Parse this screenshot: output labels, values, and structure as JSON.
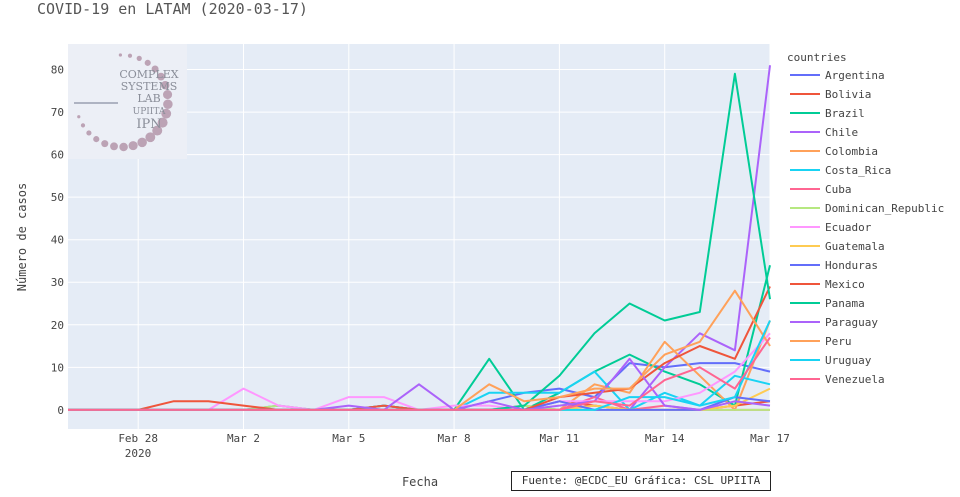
{
  "colors": {
    "plot_bg": "#E5ECF6",
    "grid": "#FFFFFF",
    "text": "#444444",
    "title": "#555555"
  },
  "source_note": "Fuente: @ECDC_EU Gráfica: CSL UPIITA",
  "logo": {
    "lines": [
      "COMPLEX",
      "SYSTEMS",
      "LAB",
      "UPIITA",
      "IPN"
    ]
  },
  "chart_data": {
    "type": "line",
    "title": "COVID-19 en LATAM (2020-03-17)",
    "xlabel": "Fecha",
    "ylabel": "Número de casos",
    "x": [
      "2020-02-26",
      "2020-02-27",
      "2020-02-28",
      "2020-02-29",
      "2020-03-01",
      "2020-03-02",
      "2020-03-03",
      "2020-03-04",
      "2020-03-05",
      "2020-03-06",
      "2020-03-07",
      "2020-03-08",
      "2020-03-09",
      "2020-03-10",
      "2020-03-11",
      "2020-03-12",
      "2020-03-13",
      "2020-03-14",
      "2020-03-15",
      "2020-03-16",
      "2020-03-17"
    ],
    "x_range": [
      "2020-02-26",
      "2020-03-17"
    ],
    "x_ticks": [
      "Feb 28",
      "Mar 2",
      "Mar 5",
      "Mar 8",
      "Mar 11",
      "Mar 14",
      "Mar 17"
    ],
    "x_tick_dates": [
      "2020-02-28",
      "2020-03-02",
      "2020-03-05",
      "2020-03-08",
      "2020-03-11",
      "2020-03-14",
      "2020-03-17"
    ],
    "x_tick_sublabel": "2020",
    "ylim": [
      -4.5,
      86
    ],
    "y_ticks": [
      0,
      10,
      20,
      30,
      40,
      50,
      60,
      70,
      80
    ],
    "grid": true,
    "legend_title": "countries",
    "legend_position": "right",
    "series": [
      {
        "name": "Argentina",
        "color": "#636EFA",
        "values": [
          0,
          0,
          0,
          0,
          0,
          0,
          1,
          0,
          0,
          1,
          0,
          0,
          2,
          4,
          5,
          3,
          11,
          10,
          11,
          11,
          9
        ]
      },
      {
        "name": "Bolivia",
        "color": "#EF553B",
        "values": [
          0,
          0,
          0,
          0,
          0,
          0,
          0,
          0,
          0,
          0,
          0,
          0,
          0,
          0,
          2,
          1,
          0,
          0,
          0,
          1,
          2
        ]
      },
      {
        "name": "Brazil",
        "color": "#00CC96",
        "values": [
          0,
          0,
          0,
          0,
          0,
          0,
          0,
          0,
          0,
          1,
          0,
          0,
          12,
          0,
          4,
          9,
          13,
          9,
          6,
          1,
          34
        ]
      },
      {
        "name": "Chile",
        "color": "#AB63FA",
        "values": [
          0,
          0,
          0,
          0,
          0,
          0,
          0,
          0,
          0,
          0,
          0,
          0,
          0,
          0,
          0,
          1,
          0,
          10,
          18,
          14,
          81
        ]
      },
      {
        "name": "Colombia",
        "color": "#FFA15A",
        "values": [
          0,
          0,
          0,
          0,
          0,
          0,
          0,
          0,
          0,
          0,
          0,
          0,
          0,
          1,
          0,
          6,
          4,
          16,
          8,
          0,
          21
        ]
      },
      {
        "name": "Costa_Rica",
        "color": "#19D3F3",
        "values": [
          0,
          0,
          0,
          0,
          0,
          0,
          0,
          0,
          0,
          1,
          0,
          0,
          4,
          4,
          4,
          9,
          0,
          4,
          1,
          8,
          6
        ]
      },
      {
        "name": "Cuba",
        "color": "#FF6692",
        "values": [
          0,
          0,
          0,
          0,
          0,
          0,
          0,
          0,
          0,
          0,
          0,
          0,
          0,
          0,
          0,
          3,
          0,
          1,
          0,
          0,
          0
        ]
      },
      {
        "name": "Dominican_Republic",
        "color": "#B6E880",
        "values": [
          0,
          0,
          0,
          0,
          0,
          0,
          1,
          0,
          0,
          0,
          0,
          0,
          0,
          1,
          0,
          0,
          0,
          0,
          0,
          0,
          0
        ]
      },
      {
        "name": "Ecuador",
        "color": "#FF97FF",
        "values": [
          0,
          0,
          0,
          0,
          0,
          5,
          1,
          0,
          3,
          3,
          0,
          1,
          1,
          0,
          2,
          2,
          2,
          2,
          4,
          9,
          18
        ]
      },
      {
        "name": "Guatemala",
        "color": "#FECB52",
        "values": [
          0,
          0,
          0,
          0,
          0,
          0,
          0,
          0,
          0,
          0,
          0,
          0,
          0,
          0,
          0,
          1,
          0,
          0,
          0,
          1,
          5
        ]
      },
      {
        "name": "Honduras",
        "color": "#636EFA",
        "values": [
          0,
          0,
          0,
          0,
          0,
          0,
          0,
          0,
          0,
          0,
          0,
          0,
          0,
          0,
          2,
          0,
          0,
          0,
          0,
          3,
          2
        ]
      },
      {
        "name": "Mexico",
        "color": "#EF553B",
        "values": [
          0,
          0,
          0,
          2,
          2,
          1,
          0,
          0,
          0,
          1,
          0,
          0,
          0,
          0,
          3,
          4,
          5,
          11,
          15,
          12,
          29
        ]
      },
      {
        "name": "Panama",
        "color": "#00CC96",
        "values": [
          0,
          0,
          0,
          0,
          0,
          0,
          0,
          0,
          0,
          0,
          0,
          0,
          0,
          1,
          8,
          18,
          25,
          21,
          23,
          79,
          26
        ]
      },
      {
        "name": "Paraguay",
        "color": "#AB63FA",
        "values": [
          0,
          0,
          0,
          0,
          0,
          0,
          0,
          0,
          1,
          0,
          6,
          0,
          2,
          0,
          1,
          2,
          12,
          1,
          0,
          2,
          1
        ]
      },
      {
        "name": "Peru",
        "color": "#FFA15A",
        "values": [
          0,
          0,
          0,
          0,
          0,
          0,
          0,
          0,
          0,
          0,
          0,
          0,
          6,
          2,
          3,
          5,
          5,
          13,
          16,
          28,
          15
        ]
      },
      {
        "name": "Uruguay",
        "color": "#19D3F3",
        "values": [
          0,
          0,
          0,
          0,
          0,
          0,
          0,
          0,
          0,
          0,
          0,
          0,
          0,
          0,
          0,
          0,
          3,
          3,
          1,
          3,
          21
        ]
      },
      {
        "name": "Venezuela",
        "color": "#FF6692",
        "values": [
          0,
          0,
          0,
          0,
          0,
          0,
          0,
          0,
          0,
          0,
          0,
          0,
          0,
          0,
          0,
          2,
          1,
          7,
          10,
          5,
          17
        ]
      }
    ]
  }
}
